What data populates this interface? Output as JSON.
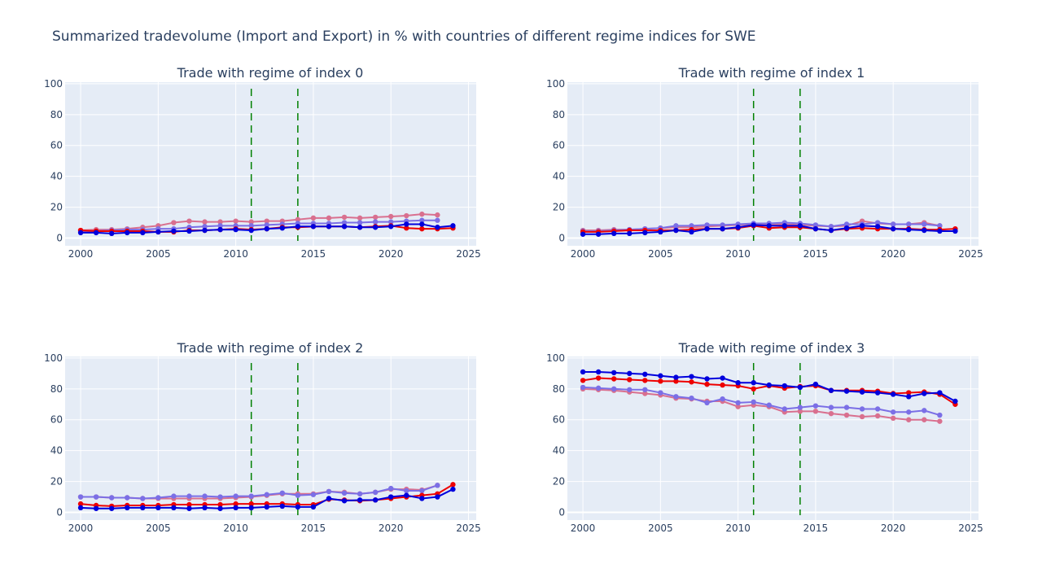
{
  "title": "Summarized tradevolume (Import and Export) in % with countries of different regime indices for SWE",
  "colors": {
    "plot_bg": "#e5ecf6",
    "grid": "#ffffff",
    "vline": "#008000",
    "s1": "#0000dd",
    "s2": "#ee0000",
    "s3": "#7b6fe6",
    "s4": "#d9708f"
  },
  "chart_data": [
    {
      "type": "line",
      "title": "Trade with regime of index 0",
      "xlim": [
        1999,
        2025.5
      ],
      "ylim": [
        -5,
        101
      ],
      "xticks": [
        2000,
        2005,
        2010,
        2015,
        2020,
        2025
      ],
      "yticks": [
        0,
        20,
        40,
        60,
        80,
        100
      ],
      "vlines": [
        2011,
        2014
      ],
      "series": [
        {
          "color_key": "s4",
          "x": [
            2000,
            2001,
            2002,
            2003,
            2004,
            2005,
            2006,
            2007,
            2008,
            2009,
            2010,
            2011,
            2012,
            2013,
            2014,
            2015,
            2016,
            2017,
            2018,
            2019,
            2020,
            2021,
            2022,
            2023
          ],
          "y": [
            5,
            5.5,
            5.5,
            6,
            7,
            8,
            10,
            11,
            10.5,
            10.5,
            11,
            10.5,
            11,
            11,
            12,
            13,
            13,
            13.5,
            13,
            13.5,
            14,
            14.5,
            15.5,
            15
          ]
        },
        {
          "color_key": "s3",
          "x": [
            2000,
            2001,
            2002,
            2003,
            2004,
            2005,
            2006,
            2007,
            2008,
            2009,
            2010,
            2011,
            2012,
            2013,
            2014,
            2015,
            2016,
            2017,
            2018,
            2019,
            2020,
            2021,
            2022,
            2023
          ],
          "y": [
            4,
            4.5,
            5,
            5.5,
            5.5,
            6,
            6,
            7,
            7.5,
            8,
            8,
            8,
            8.5,
            9,
            9.5,
            9.5,
            9.5,
            10,
            10,
            10.5,
            10.5,
            11,
            11.5,
            11.5
          ]
        },
        {
          "color_key": "s2",
          "x": [
            2000,
            2001,
            2002,
            2003,
            2004,
            2005,
            2006,
            2007,
            2008,
            2009,
            2010,
            2011,
            2012,
            2013,
            2014,
            2015,
            2016,
            2017,
            2018,
            2019,
            2020,
            2021,
            2022,
            2023,
            2024
          ],
          "y": [
            5,
            4.5,
            4.5,
            4.5,
            4.5,
            4,
            4,
            5,
            5,
            5.5,
            6,
            5.5,
            6,
            7,
            7,
            7.5,
            7.5,
            7.5,
            7,
            7.5,
            8,
            6.5,
            6,
            6,
            6.5
          ]
        },
        {
          "color_key": "s1",
          "x": [
            2000,
            2001,
            2002,
            2003,
            2004,
            2005,
            2006,
            2007,
            2008,
            2009,
            2010,
            2011,
            2012,
            2013,
            2014,
            2015,
            2016,
            2017,
            2018,
            2019,
            2020,
            2021,
            2022,
            2023,
            2024
          ],
          "y": [
            3.5,
            3.5,
            3,
            3.5,
            3.5,
            4,
            4.5,
            4.5,
            5,
            5.5,
            5.5,
            5,
            6,
            6.5,
            7.5,
            7.5,
            7.5,
            7.5,
            7,
            7,
            7.5,
            9,
            9,
            7,
            8
          ]
        }
      ]
    },
    {
      "type": "line",
      "title": "Trade with regime of index 1",
      "xlim": [
        1999,
        2025.5
      ],
      "ylim": [
        -5,
        101
      ],
      "xticks": [
        2000,
        2005,
        2010,
        2015,
        2020,
        2025
      ],
      "yticks": [
        0,
        20,
        40,
        60,
        80,
        100
      ],
      "vlines": [
        2011,
        2014
      ],
      "series": [
        {
          "color_key": "s4",
          "x": [
            2000,
            2001,
            2002,
            2003,
            2004,
            2005,
            2006,
            2007,
            2008,
            2009,
            2010,
            2011,
            2012,
            2013,
            2014,
            2015,
            2016,
            2017,
            2018,
            2019,
            2020,
            2021,
            2022,
            2023
          ],
          "y": [
            5,
            5,
            5.5,
            5.5,
            6,
            6.5,
            7,
            7,
            7.5,
            8,
            8.5,
            9,
            9,
            9,
            8.5,
            8,
            7.5,
            8,
            11,
            9.5,
            9,
            9,
            10,
            8
          ]
        },
        {
          "color_key": "s3",
          "x": [
            2000,
            2001,
            2002,
            2003,
            2004,
            2005,
            2006,
            2007,
            2008,
            2009,
            2010,
            2011,
            2012,
            2013,
            2014,
            2015,
            2016,
            2017,
            2018,
            2019,
            2020,
            2021,
            2022,
            2023
          ],
          "y": [
            4.5,
            4.5,
            5,
            5.5,
            6,
            6.5,
            8,
            8,
            8.5,
            8.5,
            9,
            9.5,
            9.5,
            10,
            9.5,
            8.5,
            7.5,
            9,
            9,
            10,
            9,
            9,
            9,
            8
          ]
        },
        {
          "color_key": "s2",
          "x": [
            2000,
            2001,
            2002,
            2003,
            2004,
            2005,
            2006,
            2007,
            2008,
            2009,
            2010,
            2011,
            2012,
            2013,
            2014,
            2015,
            2016,
            2017,
            2018,
            2019,
            2020,
            2021,
            2022,
            2023,
            2024
          ],
          "y": [
            4,
            4,
            4.5,
            5,
            5,
            5,
            5,
            5.5,
            6,
            6,
            6.5,
            8,
            6.5,
            7,
            7,
            6,
            5,
            6,
            6.5,
            6,
            6,
            6,
            5.5,
            5.5,
            6
          ]
        },
        {
          "color_key": "s1",
          "x": [
            2000,
            2001,
            2002,
            2003,
            2004,
            2005,
            2006,
            2007,
            2008,
            2009,
            2010,
            2011,
            2012,
            2013,
            2014,
            2015,
            2016,
            2017,
            2018,
            2019,
            2020,
            2021,
            2022,
            2023,
            2024
          ],
          "y": [
            2.5,
            2.5,
            3,
            3,
            3.5,
            4,
            5,
            4,
            6,
            6,
            7,
            8.5,
            8,
            8,
            8,
            6,
            5,
            6.5,
            8,
            7.5,
            6,
            5.5,
            5,
            4.5,
            4.5
          ]
        }
      ]
    },
    {
      "type": "line",
      "title": "Trade with regime of index 2",
      "xlim": [
        1999,
        2025.5
      ],
      "ylim": [
        -5,
        101
      ],
      "xticks": [
        2000,
        2005,
        2010,
        2015,
        2020,
        2025
      ],
      "yticks": [
        0,
        20,
        40,
        60,
        80,
        100
      ],
      "vlines": [
        2011,
        2014
      ],
      "series": [
        {
          "color_key": "s4",
          "x": [
            2000,
            2001,
            2002,
            2003,
            2004,
            2005,
            2006,
            2007,
            2008,
            2009,
            2010,
            2011,
            2012,
            2013,
            2014,
            2015,
            2016,
            2017,
            2018,
            2019,
            2020,
            2021,
            2022,
            2023
          ],
          "y": [
            10,
            10,
            9.5,
            9.5,
            9,
            9,
            9,
            9,
            9,
            9,
            9.5,
            10,
            11,
            12,
            12,
            12,
            13.5,
            13,
            12,
            13,
            15,
            15,
            14.5,
            17.5
          ]
        },
        {
          "color_key": "s3",
          "x": [
            2000,
            2001,
            2002,
            2003,
            2004,
            2005,
            2006,
            2007,
            2008,
            2009,
            2010,
            2011,
            2012,
            2013,
            2014,
            2015,
            2016,
            2017,
            2018,
            2019,
            2020,
            2021,
            2022,
            2023
          ],
          "y": [
            10,
            10,
            9.5,
            9.5,
            9,
            9.5,
            10.5,
            10.5,
            10.5,
            10,
            10.5,
            10.5,
            11.5,
            12.5,
            11,
            11.5,
            13.5,
            12.5,
            12,
            13,
            15.5,
            14,
            14,
            17.5
          ]
        },
        {
          "color_key": "s2",
          "x": [
            2000,
            2001,
            2002,
            2003,
            2004,
            2005,
            2006,
            2007,
            2008,
            2009,
            2010,
            2011,
            2012,
            2013,
            2014,
            2015,
            2016,
            2017,
            2018,
            2019,
            2020,
            2021,
            2022,
            2023,
            2024
          ],
          "y": [
            5.5,
            4.5,
            4,
            4.5,
            4.5,
            4.5,
            5,
            5,
            5,
            5,
            5.5,
            5.5,
            5.5,
            5.5,
            5,
            5,
            8.5,
            8,
            7.5,
            8,
            9,
            10,
            11,
            12,
            18
          ]
        },
        {
          "color_key": "s1",
          "x": [
            2000,
            2001,
            2002,
            2003,
            2004,
            2005,
            2006,
            2007,
            2008,
            2009,
            2010,
            2011,
            2012,
            2013,
            2014,
            2015,
            2016,
            2017,
            2018,
            2019,
            2020,
            2021,
            2022,
            2023,
            2024
          ],
          "y": [
            3,
            2.5,
            2.5,
            3,
            3,
            3,
            3,
            2.5,
            3,
            2.5,
            3,
            3,
            3.5,
            4,
            3.5,
            3.5,
            9,
            7.5,
            8,
            8,
            10,
            11,
            9,
            10,
            15
          ]
        }
      ]
    },
    {
      "type": "line",
      "title": "Trade with regime of index 3",
      "xlim": [
        1999,
        2025.5
      ],
      "ylim": [
        -5,
        101
      ],
      "xticks": [
        2000,
        2005,
        2010,
        2015,
        2020,
        2025
      ],
      "yticks": [
        0,
        20,
        40,
        60,
        80,
        100
      ],
      "vlines": [
        2011,
        2014
      ],
      "series": [
        {
          "color_key": "s4",
          "x": [
            2000,
            2001,
            2002,
            2003,
            2004,
            2005,
            2006,
            2007,
            2008,
            2009,
            2010,
            2011,
            2012,
            2013,
            2014,
            2015,
            2016,
            2017,
            2018,
            2019,
            2020,
            2021,
            2022,
            2023
          ],
          "y": [
            80,
            79.5,
            79,
            78,
            77,
            76,
            74,
            73.5,
            72,
            72,
            68.5,
            69.5,
            68.5,
            65,
            65.5,
            65.5,
            64,
            63,
            62,
            62.5,
            61,
            60,
            60,
            59
          ]
        },
        {
          "color_key": "s3",
          "x": [
            2000,
            2001,
            2002,
            2003,
            2004,
            2005,
            2006,
            2007,
            2008,
            2009,
            2010,
            2011,
            2012,
            2013,
            2014,
            2015,
            2016,
            2017,
            2018,
            2019,
            2020,
            2021,
            2022,
            2023
          ],
          "y": [
            81,
            80.5,
            80,
            79.5,
            79.5,
            77.5,
            75,
            74,
            71,
            73.5,
            71,
            71.5,
            69.5,
            67,
            68,
            69,
            68,
            68,
            67,
            67,
            65,
            65,
            66,
            63
          ]
        },
        {
          "color_key": "s2",
          "x": [
            2000,
            2001,
            2002,
            2003,
            2004,
            2005,
            2006,
            2007,
            2008,
            2009,
            2010,
            2011,
            2012,
            2013,
            2014,
            2015,
            2016,
            2017,
            2018,
            2019,
            2020,
            2021,
            2022,
            2023,
            2024
          ],
          "y": [
            85.5,
            87,
            86.5,
            86,
            85.5,
            85,
            85,
            84.5,
            83,
            82.5,
            82,
            80,
            82,
            80.5,
            81.5,
            82,
            79,
            79,
            79,
            78.5,
            77,
            77.5,
            78,
            76.5,
            70
          ]
        },
        {
          "color_key": "s1",
          "x": [
            2000,
            2001,
            2002,
            2003,
            2004,
            2005,
            2006,
            2007,
            2008,
            2009,
            2010,
            2011,
            2012,
            2013,
            2014,
            2015,
            2016,
            2017,
            2018,
            2019,
            2020,
            2021,
            2022,
            2023,
            2024
          ],
          "y": [
            91,
            91,
            90.5,
            90,
            89.5,
            88.5,
            87.5,
            88,
            86.5,
            87,
            84,
            84,
            82.5,
            82,
            81,
            83,
            79,
            78.5,
            78,
            77.5,
            76.5,
            75,
            77,
            77.5,
            72
          ]
        }
      ]
    }
  ]
}
